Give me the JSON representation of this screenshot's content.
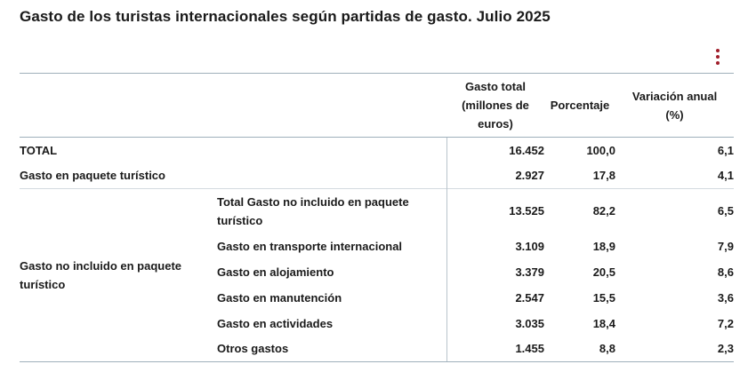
{
  "title": "Gasto de los turistas internacionales según partidas de gasto. Julio 2025",
  "headers": {
    "gasto_total": "Gasto total (millones de euros)",
    "porcentaje": "Porcentaje",
    "variacion": "Variación anual (%)"
  },
  "rows": {
    "total": {
      "label": "TOTAL",
      "gasto": "16.452",
      "porcentaje": "100,0",
      "variacion": "6,1"
    },
    "paquete": {
      "label": "Gasto en paquete turístico",
      "gasto": "2.927",
      "porcentaje": "17,8",
      "variacion": "4,1"
    },
    "no_incluido": {
      "group_label": "Gasto no incluido en paquete turístico",
      "items": [
        {
          "label": "Total Gasto no incluido en paquete turístico",
          "gasto": "13.525",
          "porcentaje": "82,2",
          "variacion": "6,5"
        },
        {
          "label": "Gasto en transporte internacional",
          "gasto": "3.109",
          "porcentaje": "18,9",
          "variacion": "7,9"
        },
        {
          "label": "Gasto en alojamiento",
          "gasto": "3.379",
          "porcentaje": "20,5",
          "variacion": "8,6"
        },
        {
          "label": "Gasto en manutención",
          "gasto": "2.547",
          "porcentaje": "15,5",
          "variacion": "3,6"
        },
        {
          "label": "Gasto en actividades",
          "gasto": "3.035",
          "porcentaje": "18,4",
          "variacion": "7,2"
        },
        {
          "label": "Otros gastos",
          "gasto": "1.455",
          "porcentaje": "8,8",
          "variacion": "2,3"
        }
      ]
    }
  },
  "icons": {
    "menu": "vertical-ellipsis-icon"
  },
  "colors": {
    "accent": "#a01d2a",
    "rule": "#9fb0bb"
  }
}
